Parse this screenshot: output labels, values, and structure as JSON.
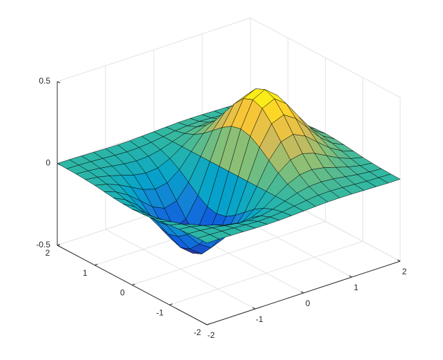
{
  "chart_data": {
    "type": "surface",
    "x": [
      -2,
      -1.75,
      -1.5,
      -1.25,
      -1,
      -0.75,
      -0.5,
      -0.25,
      0,
      0.25,
      0.5,
      0.75,
      1,
      1.25,
      1.5,
      1.75,
      2
    ],
    "y": [
      -2,
      -1.75,
      -1.5,
      -1.25,
      -1,
      -0.75,
      -0.5,
      -0.25,
      0,
      0.25,
      0.5,
      0.75,
      1,
      1.25,
      1.5,
      1.75,
      2
    ],
    "z": [
      [
        -0.001,
        -0.001,
        -0.003,
        -0.005,
        -0.007,
        -0.008,
        -0.007,
        -0.004,
        0,
        0.004,
        0.007,
        0.008,
        0.007,
        0.005,
        0.003,
        0.001,
        0.001
      ],
      [
        -0.002,
        -0.004,
        -0.007,
        -0.012,
        -0.017,
        -0.02,
        -0.018,
        -0.011,
        0,
        0.011,
        0.018,
        0.02,
        0.017,
        0.012,
        0.007,
        0.004,
        0.002
      ],
      [
        -0.004,
        -0.009,
        -0.017,
        -0.028,
        -0.039,
        -0.045,
        -0.041,
        -0.025,
        0,
        0.025,
        0.041,
        0.045,
        0.039,
        0.028,
        0.017,
        0.009,
        0.004
      ],
      [
        -0.008,
        -0.017,
        -0.033,
        -0.055,
        -0.077,
        -0.09,
        -0.082,
        -0.049,
        0,
        0.049,
        0.082,
        0.09,
        0.077,
        0.055,
        0.033,
        0.017,
        0.008
      ],
      [
        -0.013,
        -0.03,
        -0.058,
        -0.096,
        -0.135,
        -0.157,
        -0.143,
        -0.086,
        0,
        0.086,
        0.143,
        0.157,
        0.135,
        0.096,
        0.058,
        0.03,
        0.013
      ],
      [
        -0.021,
        -0.047,
        -0.09,
        -0.149,
        -0.21,
        -0.244,
        -0.222,
        -0.134,
        0,
        0.134,
        0.222,
        0.244,
        0.21,
        0.149,
        0.09,
        0.047,
        0.021
      ],
      [
        -0.029,
        -0.064,
        -0.123,
        -0.204,
        -0.287,
        -0.333,
        -0.303,
        -0.183,
        0,
        0.183,
        0.303,
        0.333,
        0.287,
        0.204,
        0.123,
        0.064,
        0.029
      ],
      [
        -0.034,
        -0.077,
        -0.149,
        -0.246,
        -0.346,
        -0.401,
        -0.366,
        -0.221,
        0,
        0.221,
        0.366,
        0.401,
        0.346,
        0.246,
        0.149,
        0.077,
        0.034
      ],
      [
        -0.037,
        -0.082,
        -0.158,
        -0.262,
        -0.368,
        -0.427,
        -0.389,
        -0.235,
        0,
        0.235,
        0.389,
        0.427,
        0.368,
        0.262,
        0.158,
        0.082,
        0.037
      ],
      [
        -0.034,
        -0.077,
        -0.149,
        -0.246,
        -0.346,
        -0.401,
        -0.366,
        -0.221,
        0,
        0.221,
        0.366,
        0.401,
        0.346,
        0.246,
        0.149,
        0.077,
        0.034
      ],
      [
        -0.029,
        -0.064,
        -0.123,
        -0.204,
        -0.287,
        -0.333,
        -0.303,
        -0.183,
        0,
        0.183,
        0.303,
        0.333,
        0.287,
        0.204,
        0.123,
        0.064,
        0.029
      ],
      [
        -0.021,
        -0.047,
        -0.09,
        -0.149,
        -0.21,
        -0.244,
        -0.222,
        -0.134,
        0,
        0.134,
        0.222,
        0.244,
        0.21,
        0.149,
        0.09,
        0.047,
        0.021
      ],
      [
        -0.013,
        -0.03,
        -0.058,
        -0.096,
        -0.135,
        -0.157,
        -0.143,
        -0.086,
        0,
        0.086,
        0.143,
        0.157,
        0.135,
        0.096,
        0.058,
        0.03,
        0.013
      ],
      [
        -0.008,
        -0.017,
        -0.033,
        -0.055,
        -0.077,
        -0.09,
        -0.082,
        -0.049,
        0,
        0.049,
        0.082,
        0.09,
        0.077,
        0.055,
        0.033,
        0.017,
        0.008
      ],
      [
        -0.004,
        -0.009,
        -0.017,
        -0.028,
        -0.039,
        -0.045,
        -0.041,
        -0.025,
        0,
        0.025,
        0.041,
        0.045,
        0.039,
        0.028,
        0.017,
        0.009,
        0.004
      ],
      [
        -0.002,
        -0.004,
        -0.007,
        -0.012,
        -0.017,
        -0.02,
        -0.018,
        -0.011,
        0,
        0.011,
        0.018,
        0.02,
        0.017,
        0.012,
        0.007,
        0.004,
        0.002
      ],
      [
        -0.001,
        -0.001,
        -0.003,
        -0.005,
        -0.007,
        -0.008,
        -0.007,
        -0.004,
        0,
        0.004,
        0.007,
        0.008,
        0.007,
        0.005,
        0.003,
        0.001,
        0.001
      ]
    ],
    "xlim": [
      -2,
      2
    ],
    "ylim": [
      -2,
      2
    ],
    "zlim": [
      -0.5,
      0.5
    ],
    "xticks": [
      -2,
      -1,
      0,
      1,
      2
    ],
    "yticks": [
      -2,
      -1,
      0,
      1,
      2
    ],
    "zticks": [
      -0.5,
      0,
      0.5
    ],
    "grid": true,
    "edge_color": "#000000",
    "colormap": [
      "#352a87",
      "#0f5cdd",
      "#1481d6",
      "#06a4ca",
      "#2eb7a4",
      "#87bf77",
      "#d1bb59",
      "#fec832",
      "#f9fb0e"
    ]
  }
}
